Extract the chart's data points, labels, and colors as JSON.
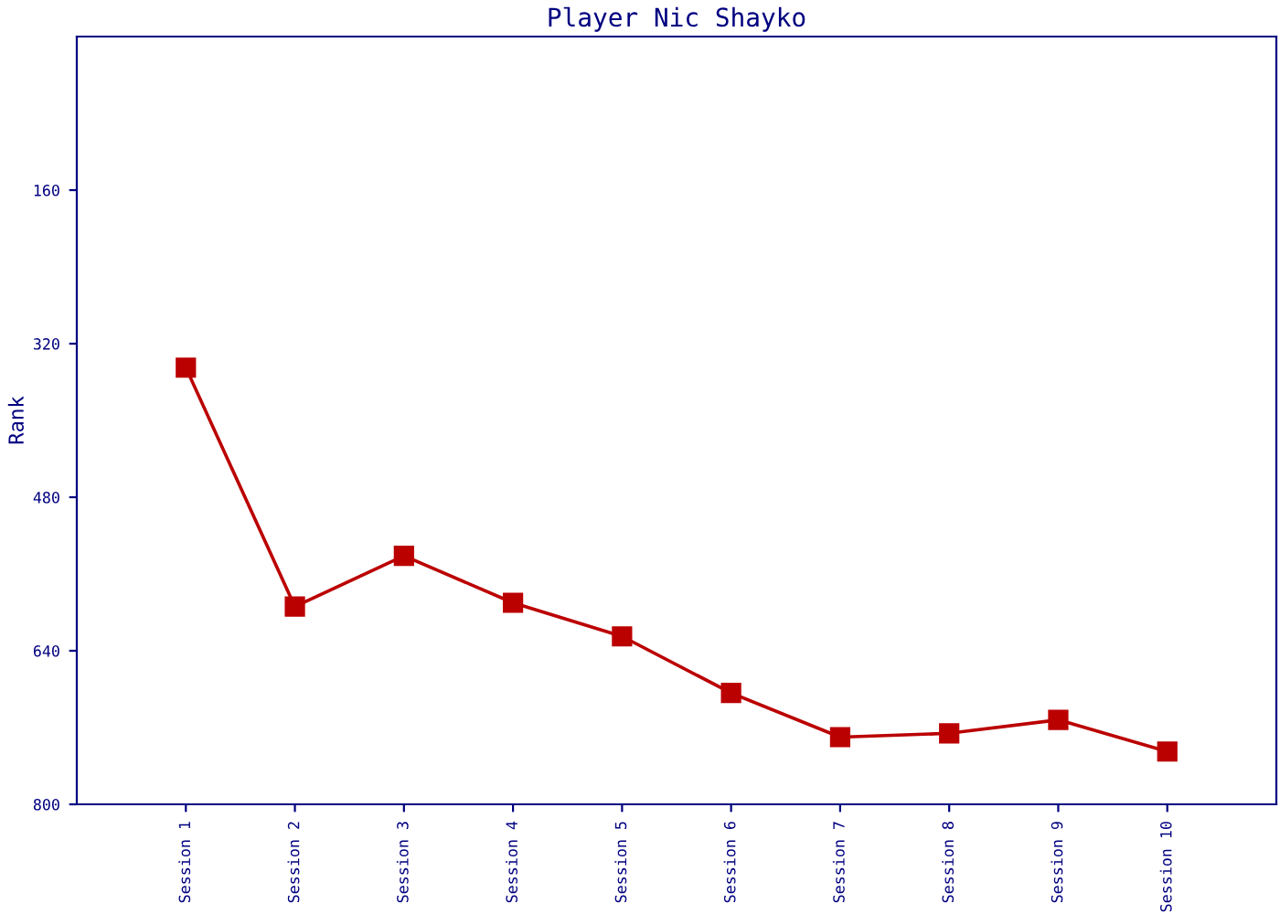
{
  "chart_data": {
    "type": "line",
    "title": "Player Nic Shayko",
    "ylabel": "Rank",
    "categories": [
      "Session 1",
      "Session 2",
      "Session 3",
      "Session 4",
      "Session 5",
      "Session 6",
      "Session 7",
      "Session 8",
      "Session 9",
      "Session 10"
    ],
    "series": [
      {
        "color": "#bb0000",
        "values": [
          345,
          594,
          541,
          590,
          625,
          684,
          730,
          726,
          712,
          745
        ]
      }
    ],
    "ylim": [
      800,
      0
    ],
    "yticks": [
      160,
      320,
      480,
      640,
      800
    ],
    "grid": false,
    "marker": "square",
    "line_style": "solid"
  }
}
